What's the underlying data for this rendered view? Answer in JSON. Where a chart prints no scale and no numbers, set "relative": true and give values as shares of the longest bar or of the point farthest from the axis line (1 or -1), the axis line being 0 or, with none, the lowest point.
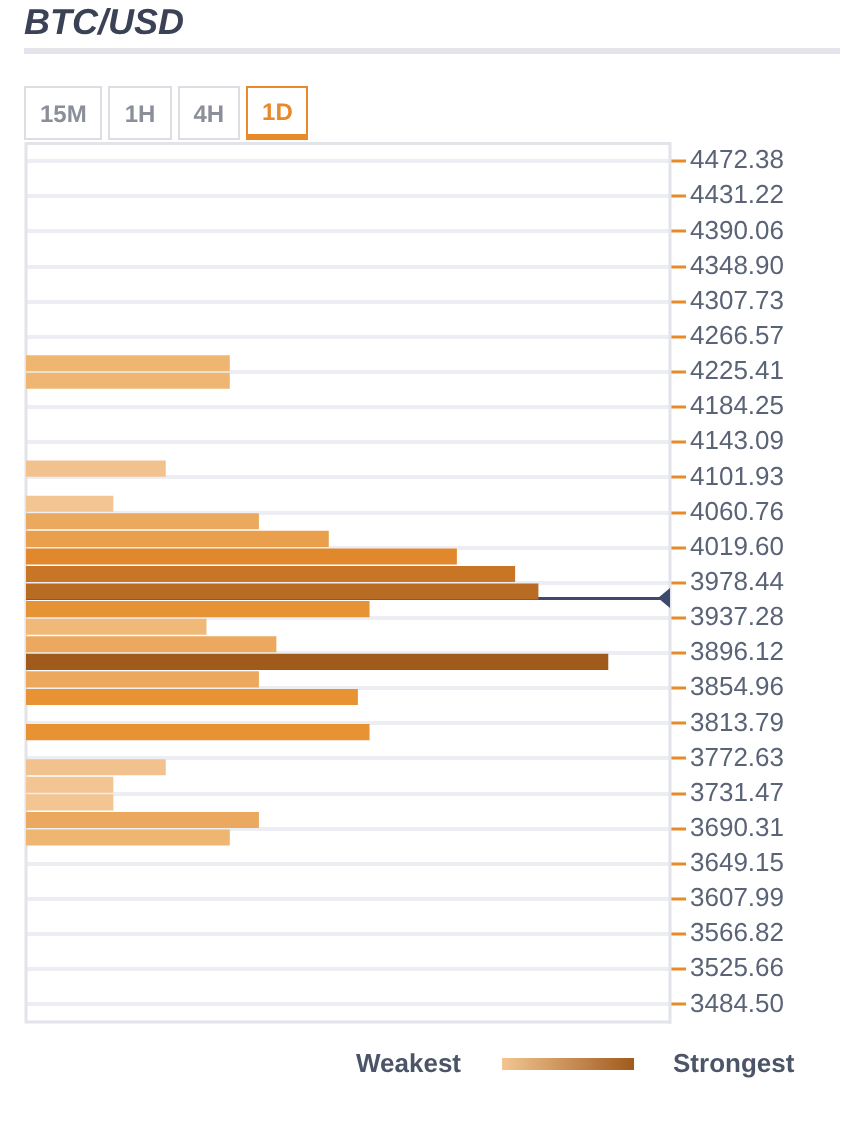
{
  "chart_data": {
    "type": "bar",
    "orientation": "horizontal",
    "relative": true,
    "title": "BTC/USD",
    "x": [
      4235.7,
      4215.1,
      4112.2,
      4071.1,
      4050.5,
      4029.9,
      4009.3,
      3988.7,
      3968.2,
      3947.6,
      3927.0,
      3906.4,
      3885.8,
      3865.3,
      3844.7,
      3803.5,
      3762.3,
      3741.8,
      3721.2,
      3700.6,
      3680.0
    ],
    "values": [
      0.35,
      0.35,
      0.24,
      0.15,
      0.4,
      0.52,
      0.74,
      0.84,
      0.88,
      0.59,
      0.31,
      0.43,
      1,
      0.4,
      0.57,
      0.59,
      0.24,
      0.15,
      0.15,
      0.4,
      0.35
    ],
    "colors": [
      "#eeb670",
      "#eeb670",
      "#f2c28e",
      "#f2c592",
      "#eaa95f",
      "#e99f4b",
      "#e2882c",
      "#c97526",
      "#b86b23",
      "#e69336",
      "#f0b97a",
      "#eba85e",
      "#a05a1c",
      "#eca95e",
      "#e79334",
      "#e79334",
      "#f2c28e",
      "#f2c592",
      "#f2c592",
      "#eaa95f",
      "#eeb670"
    ],
    "ylim": [
      3463.9,
      4493.0
    ],
    "yticks": [
      4472.38,
      4431.22,
      4390.06,
      {
        "value": 4348.9,
        "label": "4348.90"
      },
      4307.73,
      4266.57,
      4225.41,
      4184.25,
      4143.09,
      4101.93,
      4060.76,
      {
        "value": 4019.6,
        "label": "4019.60"
      },
      3978.44,
      3937.28,
      3896.12,
      3854.96,
      3813.79,
      3772.63,
      3731.47,
      3690.31,
      3649.15,
      3607.99,
      3566.82,
      3525.66,
      {
        "value": 3484.5,
        "label": "3484.50"
      }
    ],
    "grid": "y",
    "ref_lines": [
      {
        "axis": "y",
        "value": 3960,
        "color": "#3d4a6b"
      }
    ],
    "annotations": [
      "15M",
      "1H",
      "4H",
      "1D",
      "Weakest",
      "Strongest"
    ]
  }
}
